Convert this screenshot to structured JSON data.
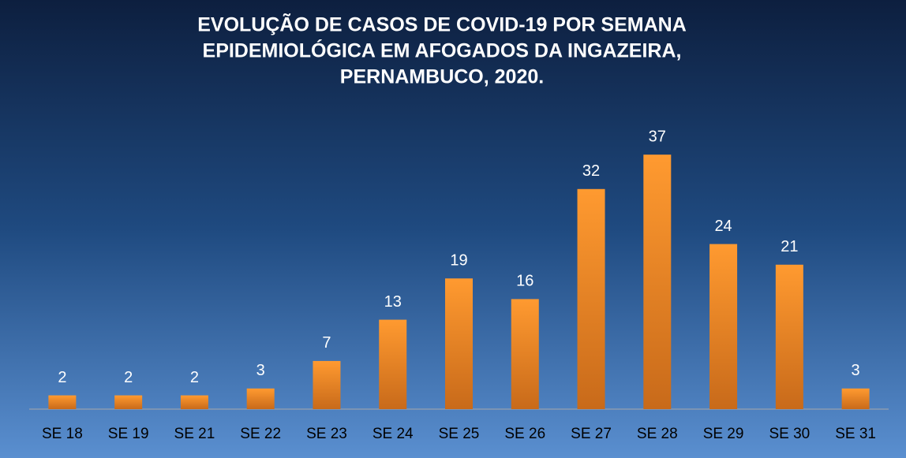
{
  "chart_data": {
    "type": "bar",
    "title": [
      "EVOLUÇÃO DE CASOS DE COVID-19 POR SEMANA",
      "EPIDEMIOLÓGICA EM AFOGADOS DA INGAZEIRA,",
      "PERNAMBUCO, 2020."
    ],
    "categories": [
      "SE 18",
      "SE 19",
      "SE 21",
      "SE 22",
      "SE 23",
      "SE 24",
      "SE 25",
      "SE 26",
      "SE 27",
      "SE 28",
      "SE 29",
      "SE 30",
      "SE 31"
    ],
    "values": [
      2,
      2,
      2,
      3,
      7,
      13,
      19,
      16,
      32,
      37,
      24,
      21,
      3
    ],
    "color": "#f28a22",
    "ylim": [
      0,
      40
    ]
  }
}
